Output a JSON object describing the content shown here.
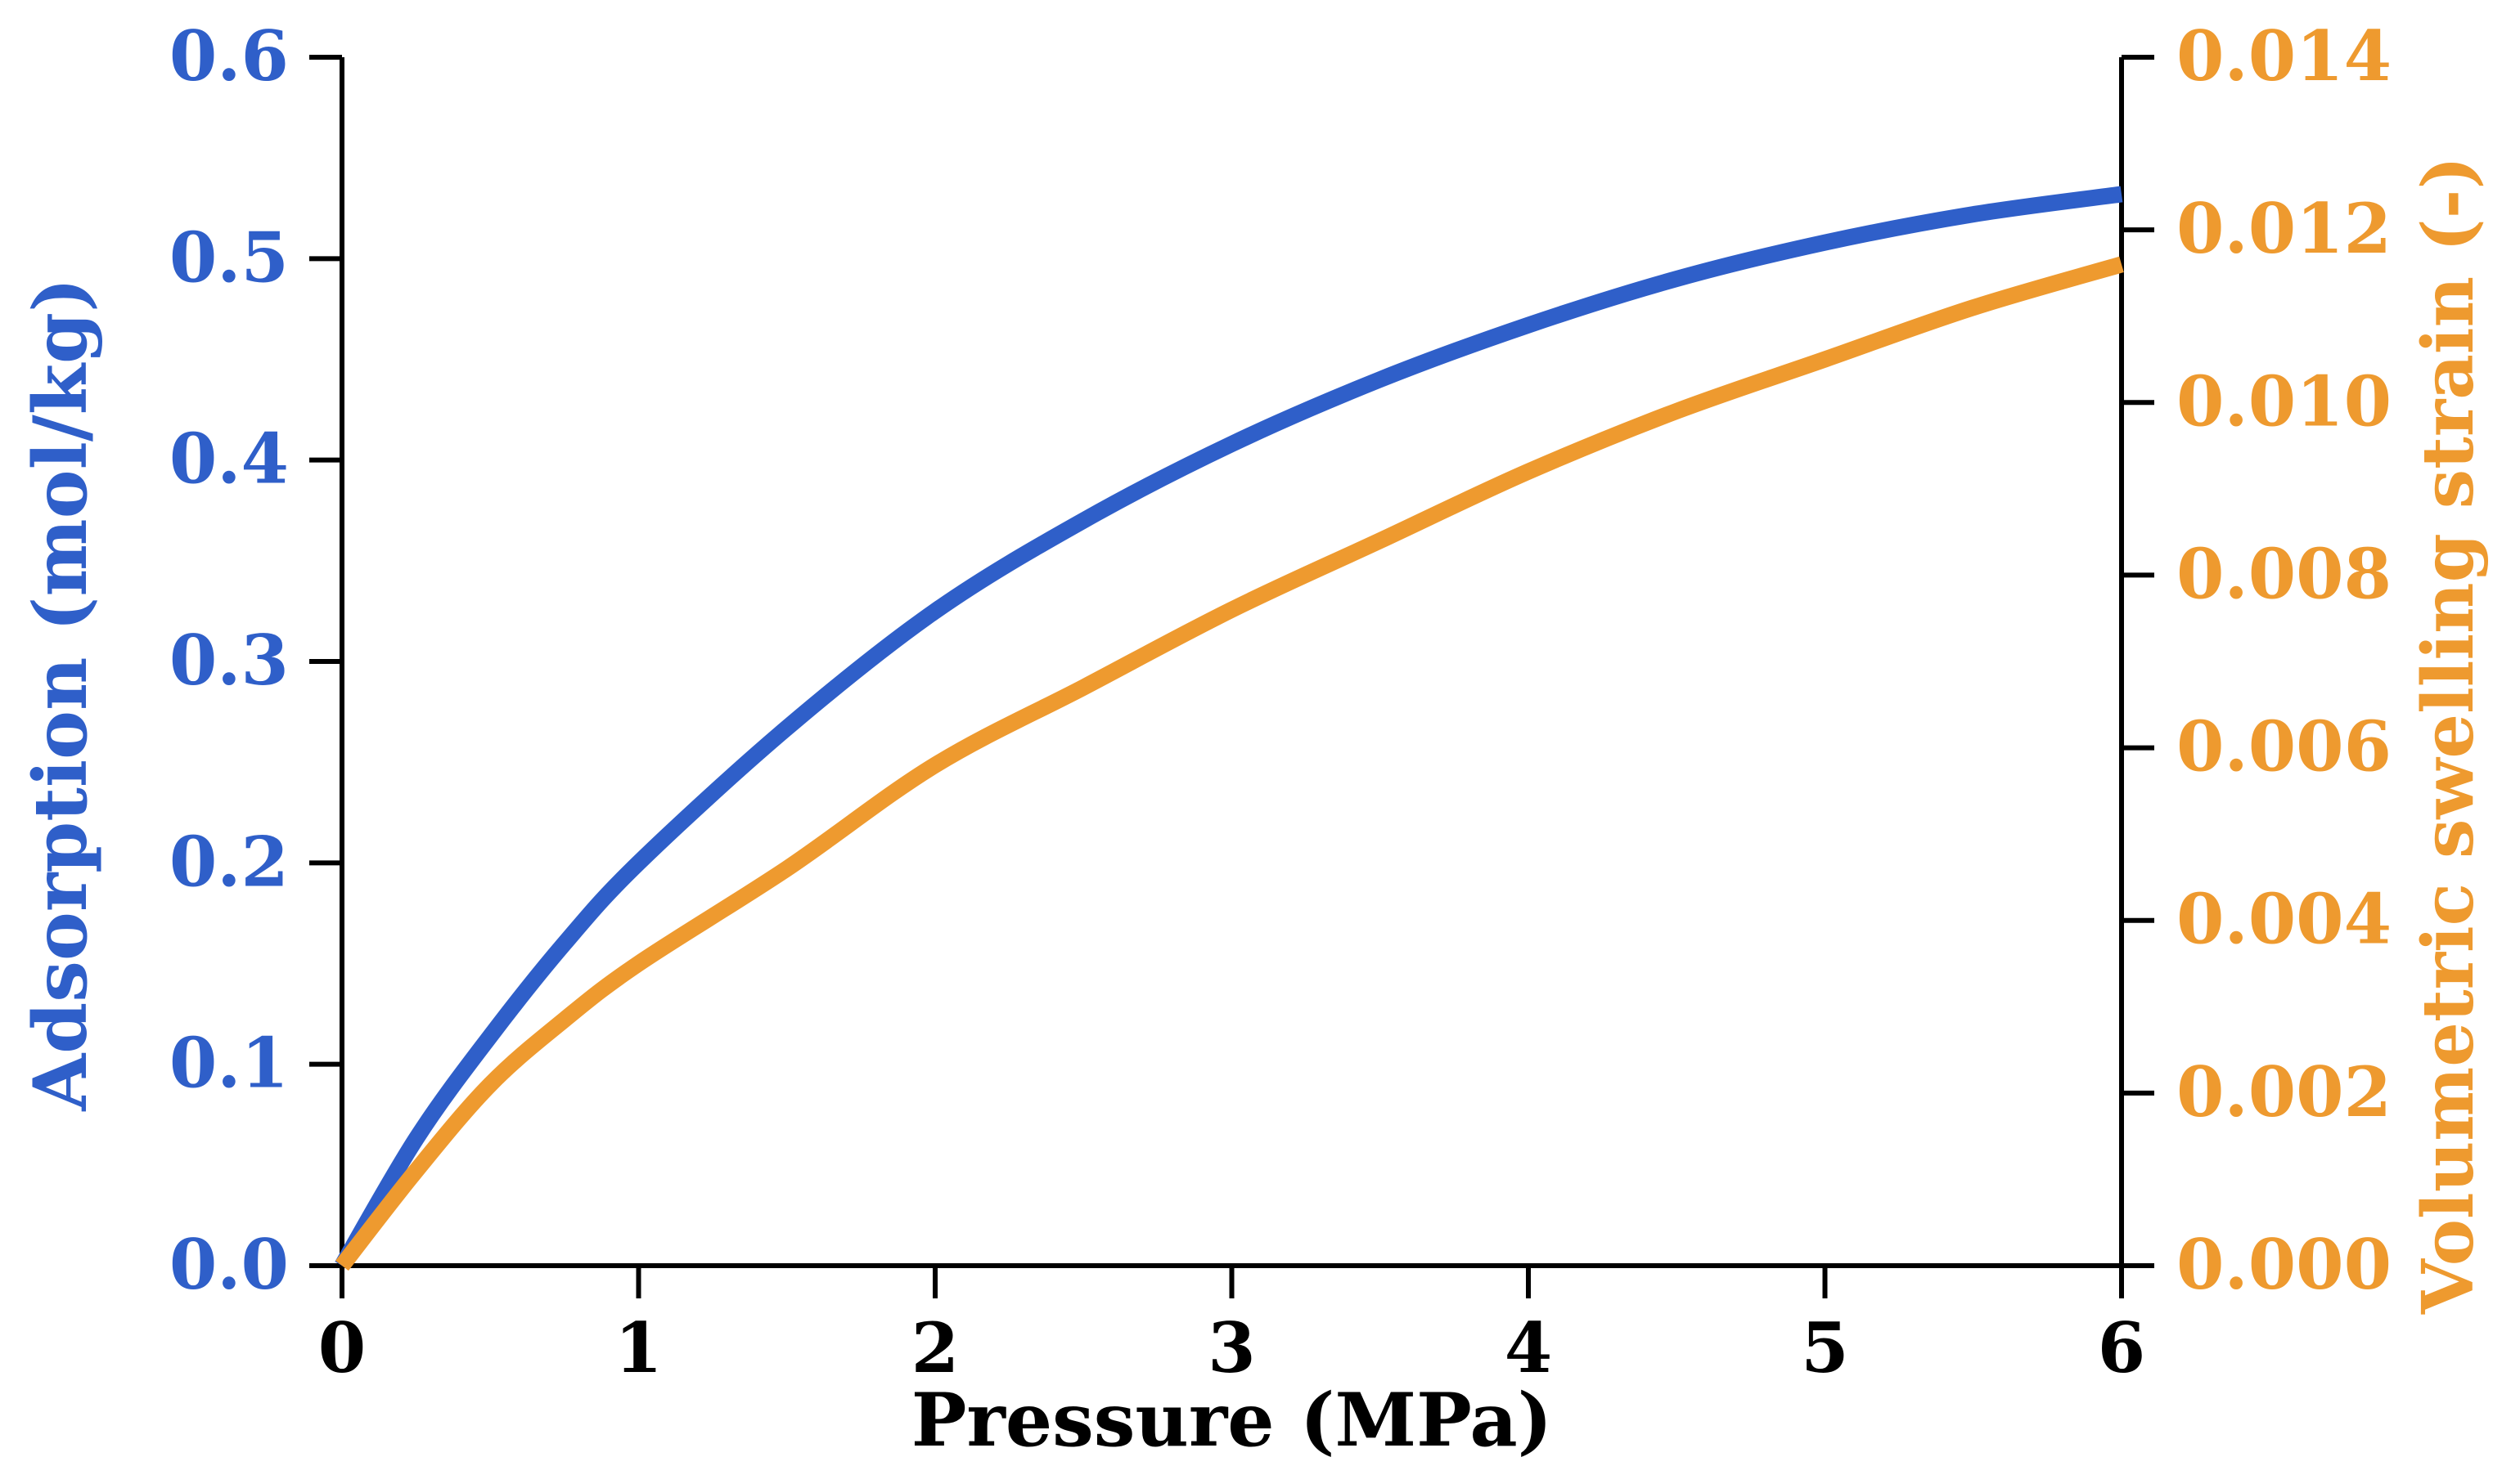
{
  "colors": {
    "adsorption": "#2f5fc9",
    "strain": "#ee9a2f",
    "axis": "#000000",
    "background": "#ffffff"
  },
  "chart_data": {
    "type": "line",
    "title": "",
    "xlabel": "Pressure (MPa)",
    "ylabel_left": "Adsorption (mol/kg)",
    "ylabel_right": "Volumetric swelling strain (-)",
    "xlim": [
      0,
      6
    ],
    "ylim_left": [
      0,
      0.6
    ],
    "ylim_right": [
      0,
      0.014
    ],
    "grid": false,
    "legend": "none",
    "x_ticks": [
      "0",
      "1",
      "2",
      "3",
      "4",
      "5",
      "6"
    ],
    "y_left_ticks": [
      "0.0",
      "0.1",
      "0.2",
      "0.3",
      "0.4",
      "0.5",
      "0.6"
    ],
    "y_right_ticks": [
      "0.000",
      "0.002",
      "0.004",
      "0.006",
      "0.008",
      "0.010",
      "0.012",
      "0.014"
    ],
    "series": [
      {
        "name": "Adsorption",
        "axis": "left",
        "x": [
          0,
          0.25,
          0.5,
          0.75,
          1,
          1.5,
          2,
          2.5,
          3,
          3.5,
          4,
          4.5,
          5,
          5.5,
          6
        ],
        "values": [
          0,
          0.063,
          0.114,
          0.16,
          0.2,
          0.267,
          0.325,
          0.37,
          0.408,
          0.44,
          0.467,
          0.49,
          0.508,
          0.522,
          0.532
        ]
      },
      {
        "name": "Volumetric swelling strain",
        "axis": "right",
        "x": [
          0,
          0.25,
          0.5,
          0.75,
          1,
          1.5,
          2,
          2.5,
          3,
          3.5,
          4,
          4.5,
          5,
          5.5,
          6
        ],
        "values": [
          0,
          0.0011,
          0.0021,
          0.00285,
          0.0035,
          0.0046,
          0.0058,
          0.0067,
          0.0076,
          0.0084,
          0.0092,
          0.0099,
          0.0105,
          0.0111,
          0.0116
        ]
      }
    ]
  }
}
